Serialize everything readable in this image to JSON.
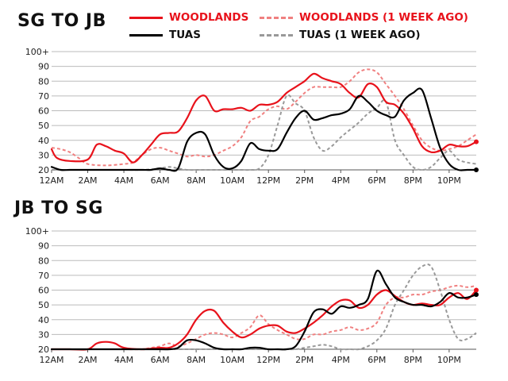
{
  "colors": {
    "woodlands": "#e8121b",
    "tuas": "#000000",
    "woodlands_prev": "#f08080",
    "tuas_prev": "#999999",
    "grid": "#bbbbbb"
  },
  "legend": {
    "woodlands": "WOODLANDS",
    "tuas": "TUAS",
    "woodlands_prev": "WOODLANDS (1 WEEK AGO)",
    "tuas_prev": "TUAS (1 WEEK AGO)"
  },
  "chart_data": [
    {
      "type": "line",
      "title": "SG TO JB",
      "xlabel": "",
      "ylabel": "",
      "xlim": [
        0,
        23.5
      ],
      "ylim": [
        20,
        100
      ],
      "grid": true,
      "xticks": [
        0,
        2,
        4,
        6,
        8,
        10,
        12,
        14,
        16,
        18,
        20,
        22
      ],
      "xtick_labels": [
        "12AM",
        "2AM",
        "4AM",
        "6AM",
        "8AM",
        "10AM",
        "12PM",
        "2PM",
        "4PM",
        "6PM",
        "8PM",
        "10PM"
      ],
      "yticks": [
        20,
        30,
        40,
        50,
        60,
        70,
        80,
        90,
        100
      ],
      "ytick_labels": [
        "20",
        "30",
        "40",
        "50",
        "60",
        "70",
        "80",
        "90",
        "100+"
      ],
      "series": [
        {
          "name": "WOODLANDS (1 WEEK AGO)",
          "key": "woodlands_prev",
          "dash": true,
          "x": [
            0,
            0.5,
            1,
            1.5,
            2,
            3,
            4,
            4.5,
            5,
            5.5,
            6,
            6.5,
            7,
            7.5,
            8,
            8.5,
            9,
            9.5,
            10,
            10.5,
            11,
            11.5,
            12,
            12.5,
            13,
            13.5,
            14,
            14.5,
            15,
            15.5,
            16,
            16.5,
            17,
            17.5,
            18,
            18.5,
            19,
            19.5,
            20,
            20.5,
            21,
            21.5,
            22,
            22.5,
            23,
            23.5
          ],
          "y": [
            35,
            34,
            32,
            28,
            24,
            23,
            24,
            25,
            30,
            34,
            35,
            33,
            31,
            29,
            30,
            29,
            30,
            33,
            36,
            42,
            53,
            56,
            61,
            63,
            61,
            66,
            72,
            76,
            76,
            76,
            76,
            80,
            86,
            88,
            86,
            78,
            70,
            61,
            50,
            40,
            35,
            33,
            34,
            36,
            40,
            44
          ]
        },
        {
          "name": "TUAS (1 WEEK AGO)",
          "key": "tuas_prev",
          "dash": true,
          "x": [
            0,
            1,
            2,
            3,
            4,
            5,
            6,
            6.5,
            7,
            7.5,
            8,
            8.5,
            9,
            9.5,
            10,
            10.5,
            11,
            11.5,
            12,
            12.5,
            13,
            13.5,
            14,
            14.5,
            15,
            15.5,
            16,
            16.5,
            17,
            17.5,
            18,
            18.5,
            19,
            19.5,
            20,
            20.5,
            21,
            21.5,
            22,
            22.5,
            23,
            23.5
          ],
          "y": [
            20,
            20,
            20,
            20,
            20,
            20,
            21,
            22,
            21,
            20,
            20,
            20,
            20,
            20,
            20,
            20,
            20,
            21,
            30,
            50,
            70,
            65,
            60,
            42,
            33,
            36,
            42,
            47,
            52,
            58,
            62,
            66,
            40,
            30,
            22,
            20,
            22,
            28,
            33,
            27,
            25,
            24
          ]
        },
        {
          "name": "WOODLANDS",
          "key": "woodlands",
          "dash": false,
          "x": [
            0,
            0.3,
            1,
            2,
            2.5,
            3,
            3.5,
            4,
            4.5,
            5,
            5.5,
            6,
            6.5,
            7,
            7.5,
            8,
            8.5,
            9,
            9.5,
            10,
            10.5,
            11,
            11.5,
            12,
            12.5,
            13,
            13.5,
            14,
            14.5,
            15,
            15.5,
            16,
            16.5,
            17,
            17.5,
            18,
            18.5,
            19,
            19.5,
            20,
            20.5,
            21,
            21.5,
            22,
            22.5,
            23,
            23.5
          ],
          "y": [
            34,
            28,
            26,
            27,
            37,
            36,
            33,
            31,
            25,
            30,
            37,
            44,
            45,
            46,
            55,
            67,
            70,
            60,
            61,
            61,
            62,
            60,
            64,
            64,
            66,
            72,
            76,
            80,
            85,
            82,
            80,
            78,
            72,
            69,
            78,
            76,
            66,
            64,
            58,
            48,
            36,
            32,
            33,
            37,
            36,
            36,
            39
          ]
        },
        {
          "name": "TUAS",
          "key": "tuas",
          "dash": false,
          "x": [
            0,
            0.5,
            1,
            2,
            3,
            4,
            5,
            5.5,
            6,
            6.5,
            7,
            7.5,
            8,
            8.5,
            9,
            9.5,
            10,
            10.5,
            11,
            11.5,
            12,
            12.5,
            13,
            13.5,
            14,
            14.5,
            15,
            15.5,
            16,
            16.5,
            17,
            17.5,
            18,
            18.5,
            19,
            19.5,
            20,
            20.5,
            21,
            21.5,
            22,
            22.5,
            23,
            23.5
          ],
          "y": [
            22,
            20,
            20,
            20,
            20,
            20,
            20,
            20,
            21,
            20,
            21,
            39,
            45,
            44,
            30,
            22,
            21,
            26,
            38,
            34,
            33,
            34,
            45,
            55,
            60,
            54,
            55,
            57,
            58,
            61,
            70,
            66,
            60,
            57,
            56,
            67,
            72,
            74,
            55,
            35,
            24,
            20,
            20,
            20
          ]
        }
      ]
    },
    {
      "type": "line",
      "title": "JB TO SG",
      "xlabel": "",
      "ylabel": "",
      "xlim": [
        0,
        23.5
      ],
      "ylim": [
        20,
        100
      ],
      "grid": true,
      "xticks": [
        0,
        2,
        4,
        6,
        8,
        10,
        12,
        14,
        16,
        18,
        20,
        22
      ],
      "xtick_labels": [
        "12AM",
        "2AM",
        "4AM",
        "6AM",
        "8AM",
        "10AM",
        "12PM",
        "2PM",
        "4PM",
        "6PM",
        "8PM",
        "10PM"
      ],
      "yticks": [
        20,
        30,
        40,
        50,
        60,
        70,
        80,
        90,
        100
      ],
      "ytick_labels": [
        "20",
        "30",
        "40",
        "50",
        "60",
        "70",
        "80",
        "90",
        "100+"
      ],
      "series": [
        {
          "name": "WOODLANDS (1 WEEK AGO)",
          "key": "woodlands_prev",
          "dash": true,
          "x": [
            0,
            1,
            2,
            3,
            4,
            5,
            5.5,
            6,
            6.5,
            7,
            7.5,
            8,
            8.5,
            9,
            9.5,
            10,
            10.5,
            11,
            11.5,
            12,
            12.5,
            13,
            13.5,
            14,
            14.5,
            15,
            15.5,
            16,
            16.5,
            17,
            17.5,
            18,
            18.5,
            19,
            19.5,
            20,
            20.5,
            21,
            21.5,
            22,
            22.5,
            23,
            23.5
          ],
          "y": [
            20,
            20,
            20,
            20,
            20,
            20,
            21,
            22,
            24,
            22,
            24,
            27,
            30,
            31,
            30,
            28,
            31,
            35,
            43,
            37,
            33,
            30,
            27,
            27,
            30,
            30,
            32,
            33,
            35,
            33,
            34,
            38,
            50,
            55,
            55,
            57,
            57,
            59,
            60,
            62,
            63,
            62,
            63
          ]
        },
        {
          "name": "TUAS (1 WEEK AGO)",
          "key": "tuas_prev",
          "dash": true,
          "x": [
            0,
            2,
            4,
            6,
            7,
            8,
            9,
            10,
            11,
            12,
            12.5,
            13,
            13.5,
            14,
            14.5,
            15,
            15.5,
            16,
            16.5,
            17,
            17.5,
            18,
            18.5,
            19,
            19.5,
            20,
            20.5,
            21,
            21.5,
            22,
            22.5,
            23,
            23.5
          ],
          "y": [
            20,
            20,
            20,
            20,
            20,
            20,
            20,
            20,
            20,
            20,
            20,
            20,
            20,
            21,
            22,
            23,
            22,
            20,
            20,
            20,
            22,
            26,
            34,
            50,
            60,
            70,
            76,
            76,
            60,
            40,
            27,
            27,
            31
          ]
        },
        {
          "name": "WOODLANDS",
          "key": "woodlands",
          "dash": false,
          "x": [
            0,
            1,
            2,
            2.5,
            3,
            3.5,
            4,
            5,
            6,
            6.5,
            7,
            7.5,
            8,
            8.5,
            9,
            9.5,
            10,
            10.5,
            11,
            11.5,
            12,
            12.5,
            13,
            13.5,
            14,
            14.5,
            15,
            15.5,
            16,
            16.5,
            17,
            17.5,
            18,
            18.5,
            19,
            19.5,
            20,
            20.5,
            21,
            21.5,
            22,
            22.5,
            23,
            23.5
          ],
          "y": [
            20,
            20,
            20,
            24,
            25,
            24,
            21,
            20,
            21,
            21,
            24,
            30,
            40,
            46,
            46,
            38,
            32,
            28,
            30,
            34,
            36,
            36,
            32,
            31,
            34,
            38,
            43,
            49,
            53,
            53,
            48,
            50,
            57,
            60,
            56,
            52,
            50,
            51,
            50,
            50,
            55,
            58,
            54,
            60
          ]
        },
        {
          "name": "TUAS",
          "key": "tuas",
          "dash": false,
          "x": [
            0,
            2,
            4,
            6,
            6.5,
            7,
            7.5,
            8,
            8.5,
            9,
            9.5,
            10,
            10.5,
            11,
            11.5,
            12,
            12.5,
            13,
            13.5,
            14,
            14.5,
            15,
            15.5,
            16,
            16.5,
            17,
            17.5,
            18,
            18.5,
            19,
            19.5,
            20,
            20.5,
            21,
            21.5,
            22,
            22.5,
            23,
            23.5
          ],
          "y": [
            20,
            20,
            20,
            20,
            20,
            21,
            26,
            26,
            24,
            21,
            20,
            20,
            20,
            21,
            21,
            20,
            20,
            20,
            22,
            32,
            45,
            47,
            44,
            49,
            48,
            50,
            54,
            73,
            64,
            55,
            52,
            50,
            50,
            49,
            52,
            58,
            55,
            55,
            57
          ]
        }
      ]
    }
  ]
}
